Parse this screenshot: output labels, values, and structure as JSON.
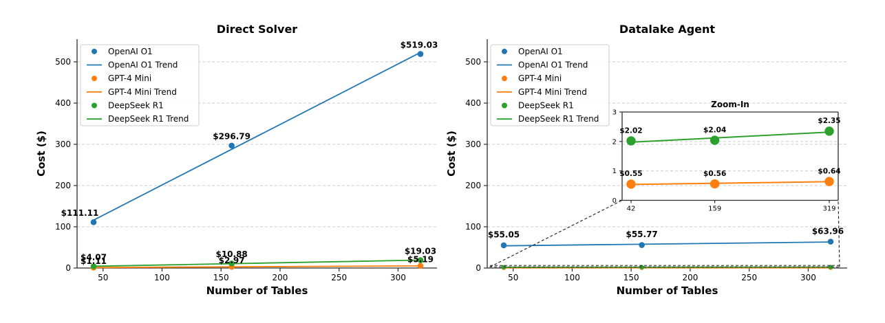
{
  "figure": {
    "background": "#ffffff",
    "left_title": "Direct Solver",
    "right_title": "Datalake Agent",
    "inset_title": "Zoom-In",
    "xlabel": "Number of Tables",
    "ylabel": "Cost ($)"
  },
  "palette": {
    "blue": "#1f77b4",
    "orange": "#ff7f0e",
    "green": "#2ca02c",
    "grid": "#cccccc",
    "axis": "#2b2b2b",
    "text": "#000000",
    "legend_border": "#cccccc",
    "connector": "#1a1a1a"
  },
  "legend_entries": [
    "OpenAI O1",
    "OpenAI O1 Trend",
    "GPT-4 Mini",
    "GPT-4 Mini Trend",
    "DeepSeek R1",
    "DeepSeek R1 Trend"
  ],
  "chart_data": [
    {
      "type": "scatter",
      "title": "Direct Solver",
      "xlabel": "Number of Tables",
      "ylabel": "Cost ($)",
      "x": [
        42,
        159,
        319
      ],
      "xlim": [
        28,
        333
      ],
      "ylim": [
        0,
        555
      ],
      "xticks": [
        50,
        100,
        150,
        200,
        250,
        300
      ],
      "yticks": [
        0,
        100,
        200,
        300,
        400,
        500
      ],
      "grid": "horizontal-dashed",
      "legend_position": "upper-left",
      "series": [
        {
          "name": "OpenAI O1",
          "trend_name": "OpenAI O1 Trend",
          "color": "blue",
          "marker": "large",
          "values": [
            111.11,
            296.79,
            519.03
          ],
          "show_point_labels": true,
          "point_labels": [
            "$111.11",
            "$296.79",
            "$519.03"
          ],
          "label_dx": [
            -20,
            0,
            -2
          ],
          "label_dy": [
            0,
            0,
            0
          ]
        },
        {
          "name": "GPT-4 Mini",
          "trend_name": "GPT-4 Mini Trend",
          "color": "orange",
          "marker": "large",
          "values": [
            1.11,
            2.97,
            5.19
          ],
          "show_point_labels": true,
          "point_labels": [
            "$1.11",
            "$2.97",
            "$5.19"
          ],
          "label_dx": [
            0,
            0,
            0
          ],
          "label_dy": [
            4,
            4,
            4
          ]
        },
        {
          "name": "DeepSeek R1",
          "trend_name": "DeepSeek R1 Trend",
          "color": "green",
          "marker": "large",
          "values": [
            4.07,
            10.88,
            19.03
          ],
          "show_point_labels": true,
          "point_labels": [
            "$4.07",
            "$10.88",
            "$19.03"
          ],
          "label_dx": [
            0,
            0,
            0
          ],
          "label_dy": [
            0,
            0,
            0
          ]
        }
      ]
    },
    {
      "type": "scatter",
      "title": "Datalake Agent",
      "xlabel": "Number of Tables",
      "ylabel": "Cost ($)",
      "x": [
        42,
        159,
        319
      ],
      "xlim": [
        28,
        333
      ],
      "ylim": [
        0,
        555
      ],
      "xticks": [
        50,
        100,
        150,
        200,
        250,
        300
      ],
      "yticks": [
        0,
        100,
        200,
        300,
        400,
        500
      ],
      "grid": "horizontal-dashed",
      "legend_position": "upper-left",
      "series": [
        {
          "name": "OpenAI O1",
          "trend_name": "OpenAI O1 Trend",
          "color": "blue",
          "marker": "large",
          "values": [
            55.05,
            55.77,
            63.96
          ],
          "show_point_labels": true,
          "point_labels": [
            "$55.05",
            "$55.77",
            "$63.96"
          ],
          "label_dx": [
            0,
            0,
            -4
          ],
          "label_dy": [
            -2,
            -2,
            -2
          ]
        },
        {
          "name": "GPT-4 Mini",
          "trend_name": "GPT-4 Mini Trend",
          "color": "orange",
          "marker": "small",
          "values": [
            0.55,
            0.56,
            0.64
          ],
          "show_point_labels": false,
          "point_labels": [
            "$0.55",
            "$0.56",
            "$0.64"
          ],
          "label_dx": [
            0,
            0,
            0
          ],
          "label_dy": [
            0,
            0,
            0
          ]
        },
        {
          "name": "DeepSeek R1",
          "trend_name": "DeepSeek R1 Trend",
          "color": "green",
          "marker": "small",
          "values": [
            2.02,
            2.04,
            2.35
          ],
          "show_point_labels": false,
          "point_labels": [
            "$2.02",
            "$2.04",
            "$2.35"
          ],
          "label_dx": [
            0,
            0,
            0
          ],
          "label_dy": [
            0,
            0,
            0
          ]
        }
      ],
      "inset": {
        "type": "scatter",
        "title": "Zoom-In",
        "x": [
          42,
          159,
          319
        ],
        "xlim": [
          29.5,
          331.5
        ],
        "ylim": [
          0,
          3
        ],
        "xticks": [
          42,
          159,
          319
        ],
        "yticks": [
          0,
          1,
          2,
          3
        ],
        "grid": "horizontal-dashed",
        "series": [
          {
            "name": "GPT-4 Mini",
            "color": "orange",
            "values": [
              0.55,
              0.56,
              0.64
            ],
            "point_labels": [
              "$0.55",
              "$0.56",
              "$0.64"
            ]
          },
          {
            "name": "DeepSeek R1",
            "color": "green",
            "values": [
              2.02,
              2.04,
              2.35
            ],
            "point_labels": [
              "$2.02",
              "$2.04",
              "$2.35"
            ]
          }
        ]
      }
    }
  ]
}
